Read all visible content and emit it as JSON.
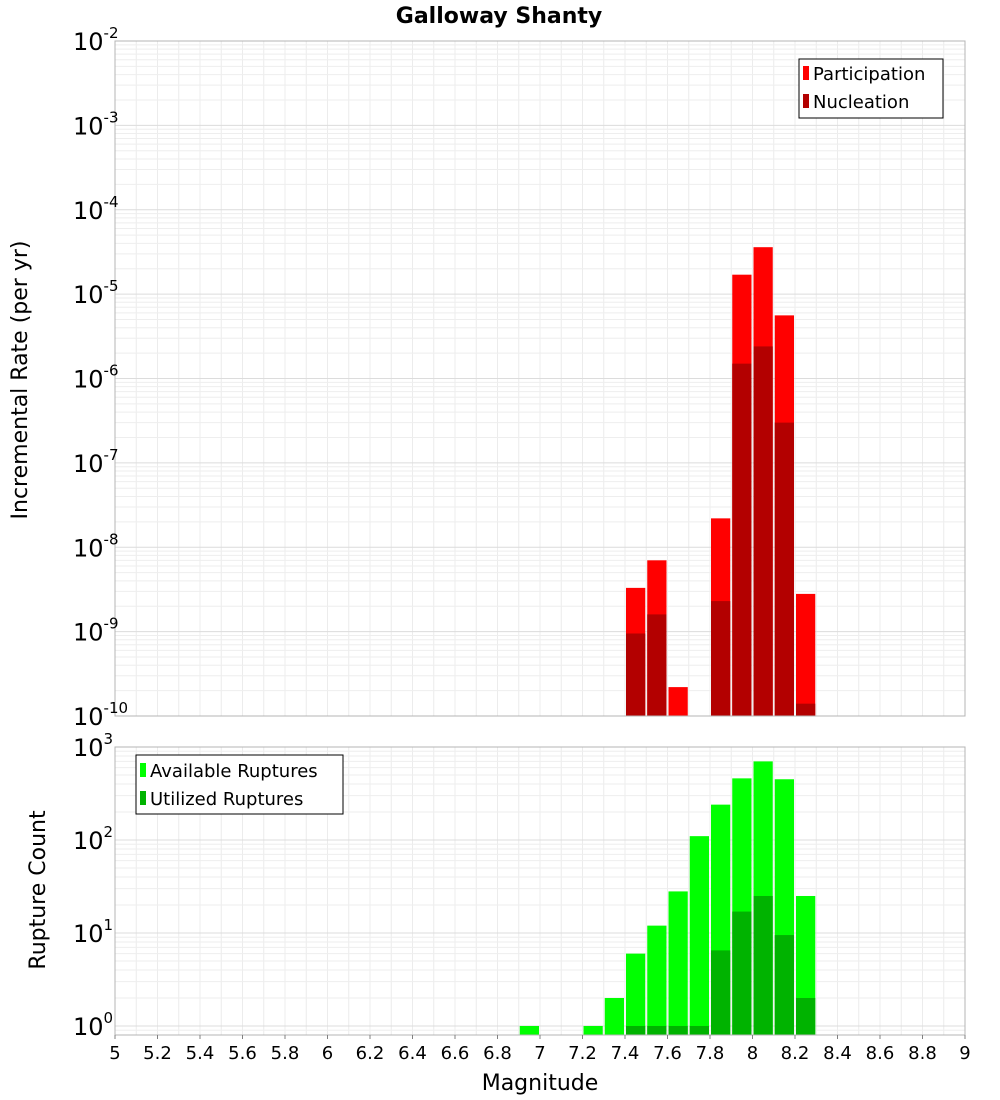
{
  "chart_data": [
    {
      "type": "bar",
      "title": "Galloway Shanty",
      "xlabel": "",
      "ylabel": "Incremental Rate (per yr)",
      "yscale": "log",
      "ylim": [
        1e-10,
        0.01
      ],
      "xlim": [
        5,
        9
      ],
      "ytick_exponents": [
        "-2",
        "-3",
        "-4",
        "-5",
        "-6",
        "-7",
        "-8",
        "-9",
        "-10"
      ],
      "legend_position": "top-right",
      "bin_width": 0.1,
      "series": [
        {
          "name": "Participation",
          "color": "#ff0000",
          "x": [
            7.45,
            7.55,
            7.65,
            7.85,
            7.95,
            8.05,
            8.15,
            8.25
          ],
          "values": [
            3.3e-09,
            7e-09,
            2.2e-10,
            2.2e-08,
            1.7e-05,
            3.6e-05,
            5.6e-06,
            2.8e-09
          ]
        },
        {
          "name": "Nucleation",
          "color": "#b30000",
          "x": [
            7.45,
            7.55,
            7.85,
            7.95,
            8.05,
            8.15,
            8.25
          ],
          "values": [
            9.5e-10,
            1.6e-09,
            2.3e-09,
            1.5e-06,
            2.4e-06,
            3e-07,
            1.4e-10
          ]
        }
      ]
    },
    {
      "type": "bar",
      "title": "",
      "xlabel": "Magnitude",
      "ylabel": "Rupture Count",
      "yscale": "log",
      "ylim": [
        0.8,
        1000
      ],
      "xlim": [
        5,
        9
      ],
      "ytick_exponents": [
        "3",
        "2",
        "1",
        "0"
      ],
      "x_tick_labels": [
        "5",
        "5.2",
        "5.4",
        "5.6",
        "5.8",
        "6",
        "6.2",
        "6.4",
        "6.6",
        "6.8",
        "7",
        "7.2",
        "7.4",
        "7.6",
        "7.8",
        "8",
        "8.2",
        "8.4",
        "8.6",
        "8.8",
        "9"
      ],
      "legend_position": "top-left",
      "bin_width": 0.1,
      "series": [
        {
          "name": "Available Ruptures",
          "color": "#00ff00",
          "x": [
            6.95,
            7.25,
            7.35,
            7.45,
            7.55,
            7.65,
            7.75,
            7.85,
            7.95,
            8.05,
            8.15,
            8.25
          ],
          "values": [
            1,
            1,
            2,
            6,
            12,
            28,
            110,
            240,
            460,
            700,
            450,
            25
          ]
        },
        {
          "name": "Utilized Ruptures",
          "color": "#00b300",
          "x": [
            7.45,
            7.55,
            7.65,
            7.75,
            7.85,
            7.95,
            8.05,
            8.15,
            8.25
          ],
          "values": [
            1,
            1,
            1,
            1,
            6.5,
            17,
            25,
            9.5,
            2
          ]
        }
      ]
    }
  ]
}
